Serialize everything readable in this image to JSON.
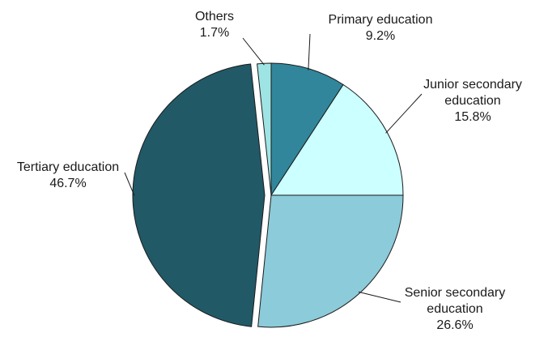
{
  "chart_data": {
    "type": "pie",
    "slices": [
      {
        "name": "Primary education",
        "value": 9.2,
        "label": "9.2%",
        "color": "#31869b"
      },
      {
        "name": "Junior secondary education",
        "value": 15.8,
        "label": "15.8%",
        "color": "#ccffff"
      },
      {
        "name": "Senior secondary education",
        "value": 26.6,
        "label": "26.6%",
        "color": "#8ccbd9"
      },
      {
        "name": "Tertiary education",
        "value": 46.7,
        "label": "46.7%",
        "color": "#215967"
      },
      {
        "name": "Others",
        "value": 1.7,
        "label": "1.7%",
        "color": "#9fe4e4"
      }
    ],
    "exploded": [
      "Tertiary education"
    ],
    "label_lines": [
      [
        "Primary education",
        "9.2%"
      ],
      [
        "Junior secondary",
        "education",
        "15.8%"
      ],
      [
        "Senior secondary",
        "education",
        "26.6%"
      ],
      [
        "Tertiary education",
        "46.7%"
      ],
      [
        "Others",
        "1.7%"
      ]
    ],
    "legend": "none",
    "title": ""
  }
}
